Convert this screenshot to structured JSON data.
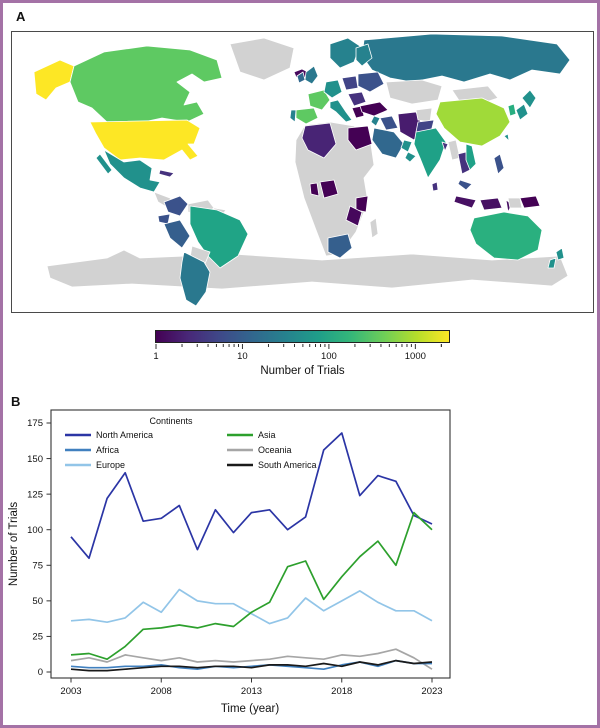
{
  "figure": {
    "panel_a_label": "A",
    "panel_b_label": "B",
    "frame_color": "#a472a6"
  },
  "map": {
    "ocean_color": "#ffffff",
    "no_data_color": "#d2d2d2",
    "border_stroke": "#ffffff",
    "colorbar": {
      "title": "Number of Trials",
      "tick_labels": [
        "1",
        "10",
        "100",
        "1000"
      ],
      "tick_values": [
        1,
        10,
        100,
        1000
      ],
      "scale": "log",
      "max_value": 2450,
      "gradient": [
        "#440154",
        "#482878",
        "#3e4a89",
        "#31688e",
        "#26828e",
        "#1f9e89",
        "#35b779",
        "#6ece58",
        "#b5de2b",
        "#fde725"
      ]
    },
    "regions": [
      {
        "id": "alaska",
        "name": "Alaska (United States)",
        "color": "#fde725"
      },
      {
        "id": "canada",
        "name": "Canada",
        "color": "#5ec962"
      },
      {
        "id": "usa",
        "name": "United States",
        "color": "#fde725"
      },
      {
        "id": "greenland",
        "name": "Greenland",
        "color": "#d2d2d2"
      },
      {
        "id": "mexico",
        "name": "Mexico",
        "color": "#21918c"
      },
      {
        "id": "central-america",
        "name": "Central America",
        "color": "#d2d2d2"
      },
      {
        "id": "cuba",
        "name": "Cuba",
        "color": "#46327e"
      },
      {
        "id": "iceland",
        "name": "Iceland",
        "color": "#46085c"
      },
      {
        "id": "colombia",
        "name": "Colombia",
        "color": "#3b528b"
      },
      {
        "id": "venezuela",
        "name": "Venezuela",
        "color": "#d2d2d2"
      },
      {
        "id": "guyana",
        "name": "Guyana",
        "color": "#d2d2d2"
      },
      {
        "id": "ecuador",
        "name": "Ecuador",
        "color": "#3b528b"
      },
      {
        "id": "peru",
        "name": "Peru",
        "color": "#355f8d"
      },
      {
        "id": "brazil",
        "name": "Brazil",
        "color": "#20a486"
      },
      {
        "id": "bolivia",
        "name": "Bolivia",
        "color": "#d2d2d2"
      },
      {
        "id": "chile-argentina",
        "name": "Chile / Argentina",
        "color": "#2a788e"
      },
      {
        "id": "scandinavia",
        "name": "Norway / Sweden",
        "color": "#26828e"
      },
      {
        "id": "finland",
        "name": "Finland",
        "color": "#26828e"
      },
      {
        "id": "uk",
        "name": "United Kingdom",
        "color": "#2a788e"
      },
      {
        "id": "ireland",
        "name": "Ireland",
        "color": "#31688e"
      },
      {
        "id": "france",
        "name": "France",
        "color": "#5ec962"
      },
      {
        "id": "spain",
        "name": "Spain",
        "color": "#5ec962"
      },
      {
        "id": "portugal",
        "name": "Portugal",
        "color": "#26828e"
      },
      {
        "id": "germany",
        "name": "Germany",
        "color": "#21918c"
      },
      {
        "id": "italy",
        "name": "Italy",
        "color": "#21918c"
      },
      {
        "id": "poland",
        "name": "Poland",
        "color": "#414487"
      },
      {
        "id": "ukraine-belarus",
        "name": "Ukraine / Belarus",
        "color": "#3b528b"
      },
      {
        "id": "balkans",
        "name": "Balkans",
        "color": "#46327e"
      },
      {
        "id": "greece",
        "name": "Greece",
        "color": "#440154"
      },
      {
        "id": "russia",
        "name": "Russia",
        "color": "#2a788e"
      },
      {
        "id": "kazakhstan",
        "name": "Kazakhstan",
        "color": "#d2d2d2"
      },
      {
        "id": "mongolia",
        "name": "Mongolia",
        "color": "#d2d2d2"
      },
      {
        "id": "turkey",
        "name": "Turkey",
        "color": "#440154"
      },
      {
        "id": "levant",
        "name": "Levant",
        "color": "#26828e"
      },
      {
        "id": "iraq",
        "name": "Iraq",
        "color": "#3b528b"
      },
      {
        "id": "iran",
        "name": "Iran",
        "color": "#481c6e"
      },
      {
        "id": "saudi-arabia",
        "name": "Saudi Arabia",
        "color": "#31688e"
      },
      {
        "id": "gulf-states",
        "name": "Gulf States",
        "color": "#21918c"
      },
      {
        "id": "oman",
        "name": "Oman",
        "color": "#21918c"
      },
      {
        "id": "africa-mainland",
        "name": "Africa (no data)",
        "color": "#d2d2d2"
      },
      {
        "id": "algeria",
        "name": "Algeria",
        "color": "#482475"
      },
      {
        "id": "egypt",
        "name": "Egypt",
        "color": "#440154"
      },
      {
        "id": "nigeria",
        "name": "Nigeria",
        "color": "#440154"
      },
      {
        "id": "ghana",
        "name": "Ghana",
        "color": "#440154"
      },
      {
        "id": "kenya",
        "name": "Kenya",
        "color": "#440154"
      },
      {
        "id": "tanzania",
        "name": "Tanzania",
        "color": "#46085c"
      },
      {
        "id": "south-africa",
        "name": "South Africa",
        "color": "#355f8d"
      },
      {
        "id": "madagascar",
        "name": "Madagascar",
        "color": "#d2d2d2"
      },
      {
        "id": "afghanistan",
        "name": "Afghanistan",
        "color": "#d2d2d2"
      },
      {
        "id": "pakistan",
        "name": "Pakistan",
        "color": "#414487"
      },
      {
        "id": "india",
        "name": "India",
        "color": "#1fa187"
      },
      {
        "id": "china",
        "name": "China",
        "color": "#a0da39"
      },
      {
        "id": "bangladesh",
        "name": "Bangladesh",
        "color": "#46327e"
      },
      {
        "id": "myanmar",
        "name": "Myanmar",
        "color": "#d2d2d2"
      },
      {
        "id": "thailand",
        "name": "Thailand",
        "color": "#46327e"
      },
      {
        "id": "vietnam",
        "name": "Vietnam",
        "color": "#1fa187"
      },
      {
        "id": "malaysia",
        "name": "Malaysia",
        "color": "#3b528b"
      },
      {
        "id": "indonesia",
        "name": "Indonesia",
        "color": "#471063"
      },
      {
        "id": "philippines",
        "name": "Philippines",
        "color": "#3b528b"
      },
      {
        "id": "japan",
        "name": "Japan",
        "color": "#21918c"
      },
      {
        "id": "south-korea",
        "name": "South Korea",
        "color": "#28ae80"
      },
      {
        "id": "taiwan",
        "name": "Taiwan",
        "color": "#21918c"
      },
      {
        "id": "sri-lanka",
        "name": "Sri Lanka",
        "color": "#46327e"
      },
      {
        "id": "papua-new-guinea",
        "name": "Papua New Guinea",
        "color": "#440154"
      },
      {
        "id": "west-papua",
        "name": "West Papua",
        "color": "#d2d2d2"
      },
      {
        "id": "australia",
        "name": "Australia",
        "color": "#2ab07f"
      },
      {
        "id": "new-zealand",
        "name": "New Zealand",
        "color": "#21918c"
      },
      {
        "id": "antarctica",
        "name": "Antarctica",
        "color": "#d2d2d2"
      }
    ]
  },
  "chart_data": {
    "type": "line",
    "xlabel": "Time (year)",
    "ylabel": "Number of Trials",
    "legend_title": "Continents",
    "legend_columns": [
      [
        "North America",
        "Africa",
        "Europe"
      ],
      [
        "Asia",
        "Oceania",
        "South America"
      ]
    ],
    "x": [
      2003,
      2004,
      2005,
      2006,
      2007,
      2008,
      2009,
      2010,
      2011,
      2012,
      2013,
      2014,
      2015,
      2016,
      2017,
      2018,
      2019,
      2020,
      2021,
      2022,
      2023
    ],
    "xticks": [
      2003,
      2008,
      2013,
      2018,
      2023
    ],
    "yticks": [
      0,
      25,
      50,
      75,
      100,
      125,
      150,
      175
    ],
    "xlim": [
      2001.9,
      2024.0
    ],
    "ylim": [
      -4,
      184
    ],
    "grid": false,
    "legend_position": "top-left-inside",
    "series": [
      {
        "name": "North America",
        "color": "#2b35a5",
        "values": [
          95,
          80,
          122,
          140,
          106,
          108,
          117,
          86,
          114,
          98,
          112,
          114,
          100,
          109,
          156,
          168,
          124,
          138,
          134,
          110,
          104
        ]
      },
      {
        "name": "Africa",
        "color": "#4080bf",
        "values": [
          4,
          3,
          3,
          4,
          4,
          5,
          3,
          2,
          4,
          3,
          4,
          5,
          4,
          3,
          2,
          5,
          7,
          4,
          8,
          6,
          6
        ]
      },
      {
        "name": "Europe",
        "color": "#92c5e8",
        "values": [
          36,
          37,
          35,
          38,
          49,
          42,
          58,
          50,
          48,
          48,
          41,
          34,
          38,
          52,
          43,
          50,
          57,
          49,
          43,
          43,
          36
        ]
      },
      {
        "name": "Asia",
        "color": "#2da02d",
        "values": [
          12,
          13,
          9,
          18,
          30,
          31,
          33,
          31,
          34,
          32,
          42,
          49,
          74,
          78,
          51,
          67,
          81,
          92,
          75,
          112,
          100
        ]
      },
      {
        "name": "Oceania",
        "color": "#a6a6a6",
        "values": [
          8,
          10,
          7,
          12,
          10,
          8,
          10,
          7,
          8,
          7,
          8,
          9,
          11,
          10,
          9,
          12,
          11,
          13,
          16,
          10,
          2
        ]
      },
      {
        "name": "South America",
        "color": "#1a1a1a",
        "values": [
          2,
          1,
          1,
          2,
          3,
          4,
          4,
          3,
          4,
          4,
          3,
          5,
          5,
          4,
          6,
          4,
          7,
          5,
          8,
          6,
          7
        ]
      }
    ]
  }
}
